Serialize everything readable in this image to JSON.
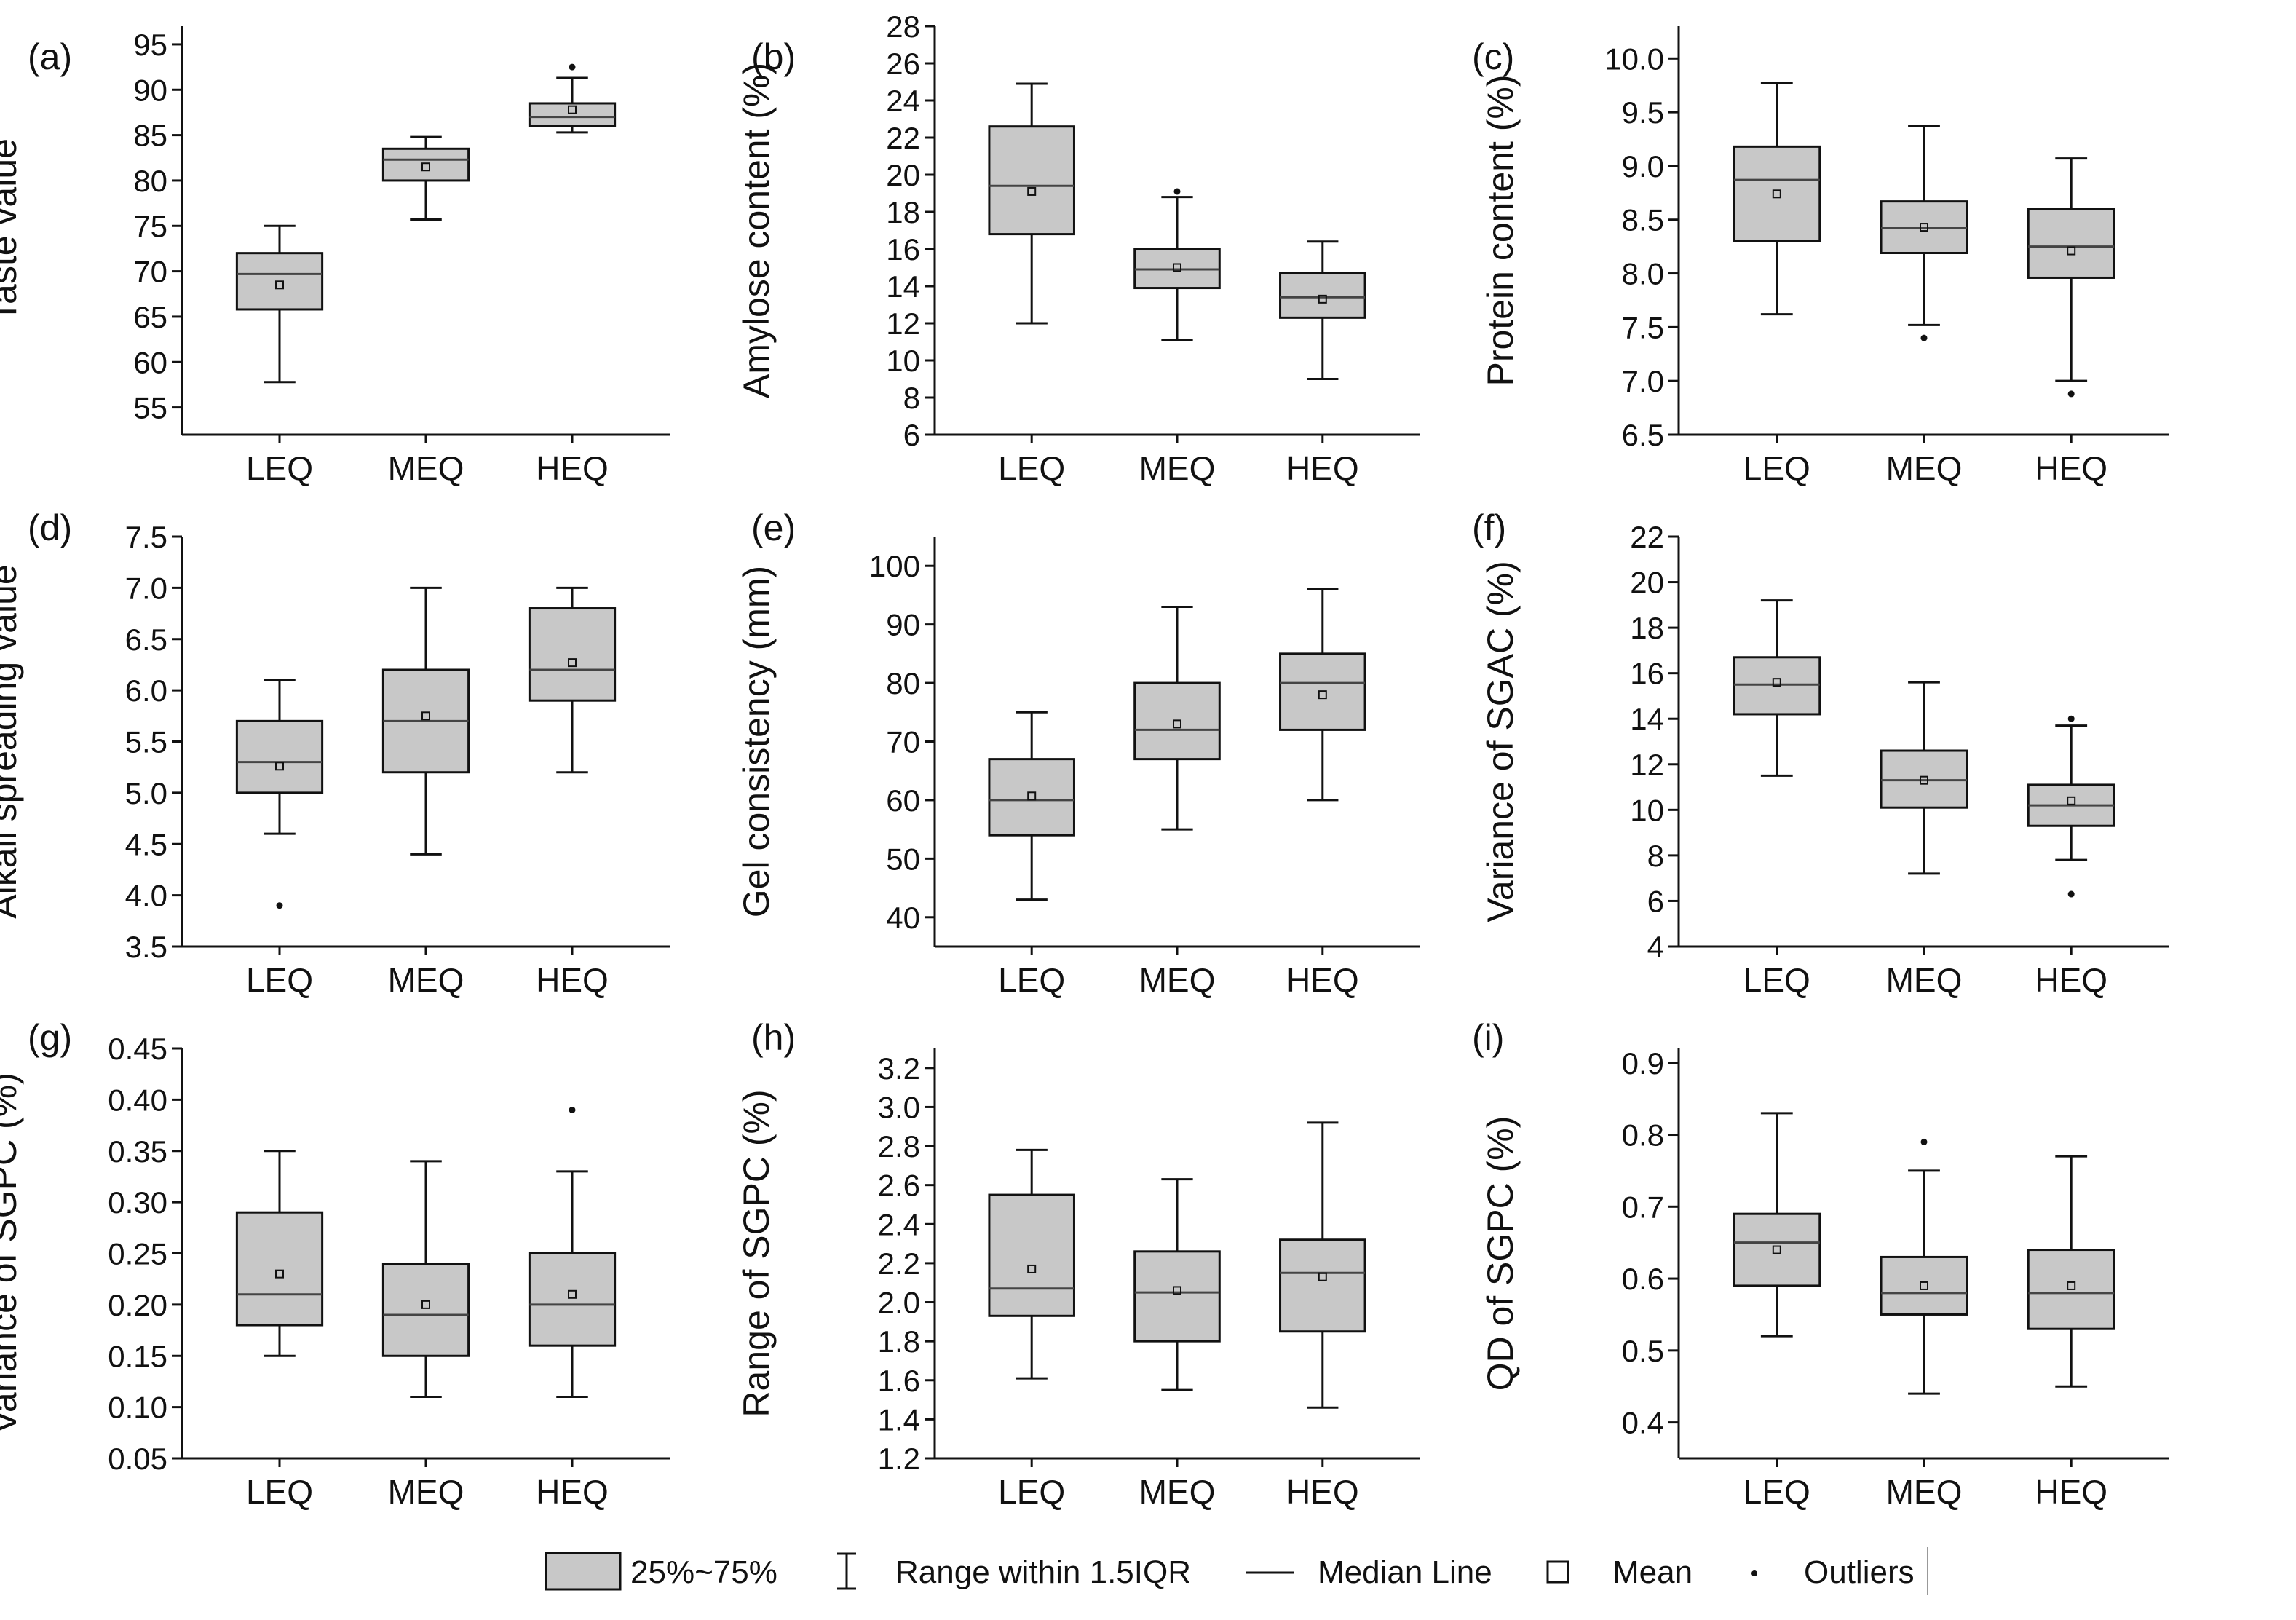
{
  "figure": {
    "categories": [
      "LEQ",
      "MEQ",
      "HEQ"
    ],
    "box_fill": "#c8c8c8",
    "line_color": "#111111"
  },
  "legend": {
    "box_label": "25%~75%",
    "whisker_label": "Range within 1.5IQR",
    "median_label": "Median Line",
    "mean_label": "Mean",
    "outlier_label": "Outliers"
  },
  "chart_data": [
    {
      "panel": "(a)",
      "type": "box",
      "ylabel": "Taste value",
      "ylim": [
        52,
        97
      ],
      "ticks": [
        55,
        60,
        65,
        70,
        75,
        80,
        85,
        90,
        95
      ],
      "tick_labels": [
        "55",
        "60",
        "65",
        "70",
        "75",
        "80",
        "85",
        "90",
        "95"
      ],
      "boxes": [
        {
          "category": "LEQ",
          "whisker_low": 57.8,
          "q1": 65.8,
          "median": 69.7,
          "q3": 72.0,
          "whisker_high": 75.0,
          "mean": 68.5,
          "outliers": []
        },
        {
          "category": "MEQ",
          "whisker_low": 75.7,
          "q1": 80.0,
          "median": 82.3,
          "q3": 83.5,
          "whisker_high": 84.8,
          "mean": 81.5,
          "outliers": []
        },
        {
          "category": "HEQ",
          "whisker_low": 85.3,
          "q1": 86.0,
          "median": 87.0,
          "q3": 88.5,
          "whisker_high": 91.3,
          "mean": 87.8,
          "outliers": [
            92.5
          ]
        }
      ]
    },
    {
      "panel": "(b)",
      "type": "box",
      "ylabel": "Amylose content (%)",
      "ylim": [
        6,
        28
      ],
      "ticks": [
        6,
        8,
        10,
        12,
        14,
        16,
        18,
        20,
        22,
        24,
        26,
        28
      ],
      "tick_labels": [
        "6",
        "8",
        "10",
        "12",
        "14",
        "16",
        "18",
        "20",
        "22",
        "24",
        "26",
        "28"
      ],
      "boxes": [
        {
          "category": "LEQ",
          "whisker_low": 12.0,
          "q1": 16.8,
          "median": 19.4,
          "q3": 22.6,
          "whisker_high": 24.9,
          "mean": 19.1,
          "outliers": []
        },
        {
          "category": "MEQ",
          "whisker_low": 11.1,
          "q1": 13.9,
          "median": 14.9,
          "q3": 16.0,
          "whisker_high": 18.8,
          "mean": 15.0,
          "outliers": [
            19.1
          ]
        },
        {
          "category": "HEQ",
          "whisker_low": 9.0,
          "q1": 12.3,
          "median": 13.4,
          "q3": 14.7,
          "whisker_high": 16.4,
          "mean": 13.3,
          "outliers": []
        }
      ]
    },
    {
      "panel": "(c)",
      "type": "box",
      "ylabel": "Protein content (%)",
      "ylim": [
        6.5,
        10.3
      ],
      "ticks": [
        6.5,
        7.0,
        7.5,
        8.0,
        8.5,
        9.0,
        9.5,
        10.0
      ],
      "tick_labels": [
        "6.5",
        "7.0",
        "7.5",
        "8.0",
        "8.5",
        "9.0",
        "9.5",
        "10.0"
      ],
      "boxes": [
        {
          "category": "LEQ",
          "whisker_low": 7.62,
          "q1": 8.3,
          "median": 8.87,
          "q3": 9.18,
          "whisker_high": 9.77,
          "mean": 8.74,
          "outliers": []
        },
        {
          "category": "MEQ",
          "whisker_low": 7.52,
          "q1": 8.19,
          "median": 8.42,
          "q3": 8.67,
          "whisker_high": 9.37,
          "mean": 8.43,
          "outliers": [
            7.4
          ]
        },
        {
          "category": "HEQ",
          "whisker_low": 7.0,
          "q1": 7.96,
          "median": 8.25,
          "q3": 8.6,
          "whisker_high": 9.07,
          "mean": 8.21,
          "outliers": [
            6.88
          ]
        }
      ]
    },
    {
      "panel": "(d)",
      "type": "box",
      "ylabel": "Alkali spreading value",
      "ylim": [
        3.5,
        7.5
      ],
      "ticks": [
        3.5,
        4.0,
        4.5,
        5.0,
        5.5,
        6.0,
        6.5,
        7.0,
        7.5
      ],
      "tick_labels": [
        "3.5",
        "4.0",
        "4.5",
        "5.0",
        "5.5",
        "6.0",
        "6.5",
        "7.0",
        "7.5"
      ],
      "boxes": [
        {
          "category": "LEQ",
          "whisker_low": 4.6,
          "q1": 5.0,
          "median": 5.3,
          "q3": 5.7,
          "whisker_high": 6.1,
          "mean": 5.26,
          "outliers": [
            3.9
          ]
        },
        {
          "category": "MEQ",
          "whisker_low": 4.4,
          "q1": 5.2,
          "median": 5.7,
          "q3": 6.2,
          "whisker_high": 7.0,
          "mean": 5.75,
          "outliers": []
        },
        {
          "category": "HEQ",
          "whisker_low": 5.2,
          "q1": 5.9,
          "median": 6.2,
          "q3": 6.8,
          "whisker_high": 7.0,
          "mean": 6.27,
          "outliers": []
        }
      ]
    },
    {
      "panel": "(e)",
      "type": "box",
      "ylabel": "Gel consistency (mm)",
      "ylim": [
        35,
        105
      ],
      "ticks": [
        40,
        50,
        60,
        70,
        80,
        90,
        100
      ],
      "tick_labels": [
        "40",
        "50",
        "60",
        "70",
        "80",
        "90",
        "100"
      ],
      "boxes": [
        {
          "category": "LEQ",
          "whisker_low": 43,
          "q1": 54,
          "median": 60,
          "q3": 67,
          "whisker_high": 75,
          "mean": 60.7,
          "outliers": []
        },
        {
          "category": "MEQ",
          "whisker_low": 55,
          "q1": 67,
          "median": 72,
          "q3": 80,
          "whisker_high": 93,
          "mean": 73,
          "outliers": []
        },
        {
          "category": "HEQ",
          "whisker_low": 60,
          "q1": 72,
          "median": 80,
          "q3": 85,
          "whisker_high": 96,
          "mean": 78,
          "outliers": []
        }
      ]
    },
    {
      "panel": "(f)",
      "type": "box",
      "ylabel": "Variance of SGAC (%)",
      "ylim": [
        4,
        22
      ],
      "ticks": [
        4,
        6,
        8,
        10,
        12,
        14,
        16,
        18,
        20,
        22
      ],
      "tick_labels": [
        "4",
        "6",
        "8",
        "10",
        "12",
        "14",
        "16",
        "18",
        "20",
        "22"
      ],
      "boxes": [
        {
          "category": "LEQ",
          "whisker_low": 11.5,
          "q1": 14.2,
          "median": 15.5,
          "q3": 16.7,
          "whisker_high": 19.2,
          "mean": 15.6,
          "outliers": []
        },
        {
          "category": "MEQ",
          "whisker_low": 7.2,
          "q1": 10.1,
          "median": 11.3,
          "q3": 12.6,
          "whisker_high": 15.6,
          "mean": 11.3,
          "outliers": []
        },
        {
          "category": "HEQ",
          "whisker_low": 7.8,
          "q1": 9.3,
          "median": 10.2,
          "q3": 11.1,
          "whisker_high": 13.7,
          "mean": 10.4,
          "outliers": [
            14.0,
            6.3
          ]
        }
      ]
    },
    {
      "panel": "(g)",
      "type": "box",
      "ylabel": "Variance of SGPC (%)",
      "ylim": [
        0.05,
        0.45
      ],
      "ticks": [
        0.05,
        0.1,
        0.15,
        0.2,
        0.25,
        0.3,
        0.35,
        0.4,
        0.45
      ],
      "tick_labels": [
        "0.05",
        "0.10",
        "0.15",
        "0.20",
        "0.25",
        "0.30",
        "0.35",
        "0.40",
        "0.45"
      ],
      "boxes": [
        {
          "category": "LEQ",
          "whisker_low": 0.15,
          "q1": 0.18,
          "median": 0.21,
          "q3": 0.29,
          "whisker_high": 0.35,
          "mean": 0.23,
          "outliers": []
        },
        {
          "category": "MEQ",
          "whisker_low": 0.11,
          "q1": 0.15,
          "median": 0.19,
          "q3": 0.24,
          "whisker_high": 0.34,
          "mean": 0.2,
          "outliers": []
        },
        {
          "category": "HEQ",
          "whisker_low": 0.11,
          "q1": 0.16,
          "median": 0.2,
          "q3": 0.25,
          "whisker_high": 0.33,
          "mean": 0.21,
          "outliers": [
            0.39
          ]
        }
      ]
    },
    {
      "panel": "(h)",
      "type": "box",
      "ylabel": "Range of SGPC (%)",
      "ylim": [
        1.2,
        3.3
      ],
      "ticks": [
        1.2,
        1.4,
        1.6,
        1.8,
        2.0,
        2.2,
        2.4,
        2.6,
        2.8,
        3.0,
        3.2
      ],
      "tick_labels": [
        "1.2",
        "1.4",
        "1.6",
        "1.8",
        "2.0",
        "2.2",
        "2.4",
        "2.6",
        "2.8",
        "3.0",
        "3.2"
      ],
      "boxes": [
        {
          "category": "LEQ",
          "whisker_low": 1.61,
          "q1": 1.93,
          "median": 2.07,
          "q3": 2.55,
          "whisker_high": 2.78,
          "mean": 2.17,
          "outliers": []
        },
        {
          "category": "MEQ",
          "whisker_low": 1.55,
          "q1": 1.8,
          "median": 2.05,
          "q3": 2.26,
          "whisker_high": 2.63,
          "mean": 2.06,
          "outliers": []
        },
        {
          "category": "HEQ",
          "whisker_low": 1.46,
          "q1": 1.85,
          "median": 2.15,
          "q3": 2.32,
          "whisker_high": 2.92,
          "mean": 2.13,
          "outliers": []
        }
      ]
    },
    {
      "panel": "(i)",
      "type": "box",
      "ylabel": "QD of SGPC (%)",
      "ylim": [
        0.35,
        0.92
      ],
      "ticks": [
        0.4,
        0.5,
        0.6,
        0.7,
        0.8,
        0.9
      ],
      "tick_labels": [
        "0.4",
        "0.5",
        "0.6",
        "0.7",
        "0.8",
        "0.9"
      ],
      "boxes": [
        {
          "category": "LEQ",
          "whisker_low": 0.52,
          "q1": 0.59,
          "median": 0.65,
          "q3": 0.69,
          "whisker_high": 0.83,
          "mean": 0.64,
          "outliers": []
        },
        {
          "category": "MEQ",
          "whisker_low": 0.44,
          "q1": 0.55,
          "median": 0.58,
          "q3": 0.63,
          "whisker_high": 0.75,
          "mean": 0.59,
          "outliers": [
            0.79
          ]
        },
        {
          "category": "HEQ",
          "whisker_low": 0.45,
          "q1": 0.53,
          "median": 0.58,
          "q3": 0.64,
          "whisker_high": 0.77,
          "mean": 0.59,
          "outliers": []
        }
      ]
    }
  ]
}
